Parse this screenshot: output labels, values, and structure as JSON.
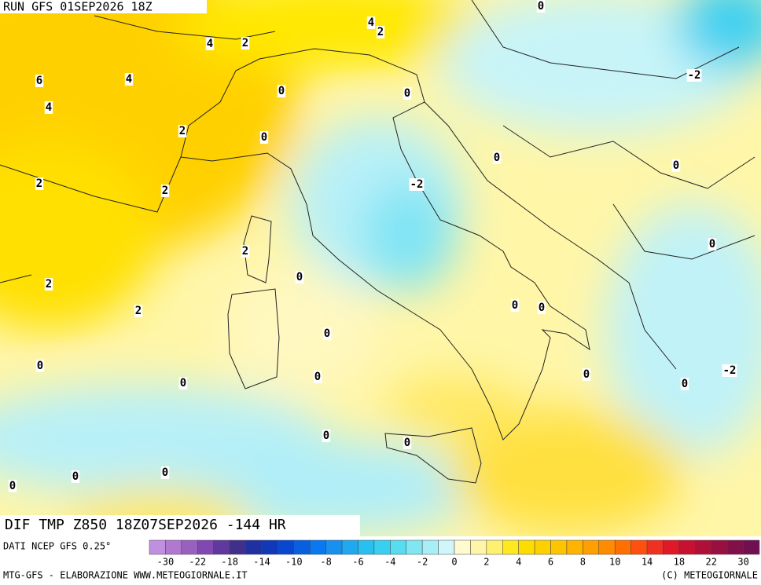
{
  "header": {
    "run": "RUN GFS 01SEP2026 18Z"
  },
  "map": {
    "title": "DIF TMP Z850 18Z07SEP2026 -144 HR",
    "contour_labels": [
      6,
      4,
      4,
      2,
      4,
      4,
      2,
      0,
      -2,
      0,
      0,
      2,
      0,
      0,
      0,
      -2,
      2,
      2,
      2,
      0,
      0,
      2,
      2,
      0,
      0,
      0,
      0,
      -2,
      0,
      0,
      0,
      0,
      0,
      0,
      0,
      0,
      0
    ]
  },
  "colorbar": {
    "labels": [
      -30,
      -22,
      -18,
      -14,
      -10,
      -8,
      -6,
      -4,
      -2,
      0,
      2,
      4,
      6,
      8,
      10,
      14,
      18,
      22,
      30
    ]
  },
  "footer": {
    "source": "DATI NCEP GFS 0.25°",
    "credit": "MTG-GFS - ELABORAZIONE WWW.METEOGIORNALE.IT",
    "copyright": "(C) METEOGIORNALE"
  }
}
